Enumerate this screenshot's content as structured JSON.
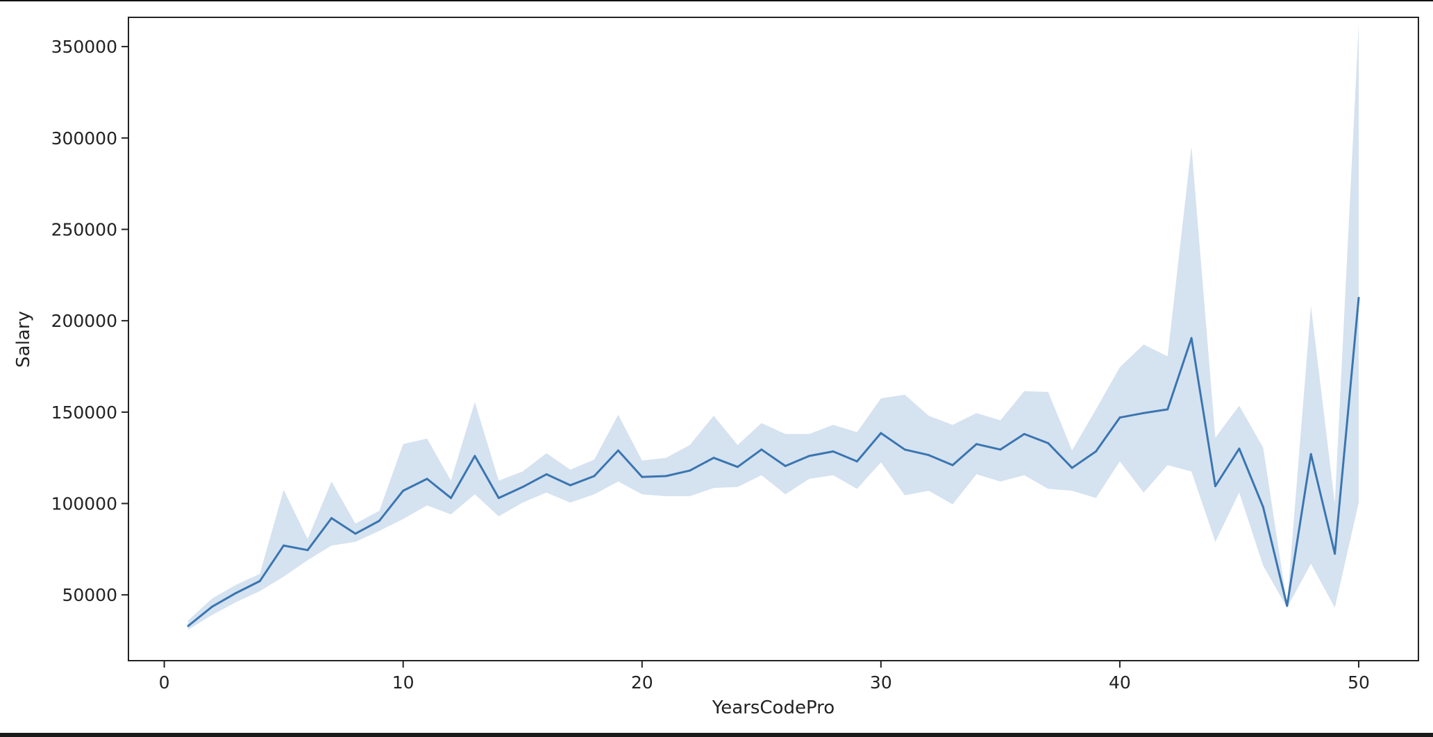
{
  "chart_data": {
    "type": "line",
    "title": "",
    "xlabel": "YearsCodePro",
    "ylabel": "Salary",
    "xlim": [
      -1.5,
      52.5
    ],
    "ylim": [
      14000,
      366000
    ],
    "xticks": [
      0,
      10,
      20,
      30,
      40,
      50
    ],
    "yticks": [
      50000,
      100000,
      150000,
      200000,
      250000,
      300000,
      350000
    ],
    "xtick_labels": [
      "0",
      "10",
      "20",
      "30",
      "40",
      "50"
    ],
    "ytick_labels": [
      "50000",
      "100000",
      "150000",
      "200000",
      "250000",
      "300000",
      "350000"
    ],
    "grid": false,
    "line_color": "#3a75b0",
    "band_color": "#c3d5ea",
    "series": [
      {
        "x": [
          1,
          2,
          3,
          4,
          5,
          6,
          7,
          8,
          9,
          10,
          11,
          12,
          13,
          14,
          15,
          16,
          17,
          18,
          19,
          20,
          21,
          22,
          23,
          24,
          25,
          26,
          27,
          28,
          29,
          30,
          31,
          32,
          33,
          34,
          35,
          36,
          37,
          38,
          39,
          40,
          41,
          42,
          43,
          44,
          45,
          46,
          47,
          48,
          49,
          50
        ],
        "y": [
          33000,
          43500,
          51000,
          57500,
          77000,
          74500,
          92000,
          83500,
          90500,
          107000,
          113500,
          103000,
          126000,
          103000,
          109000,
          116000,
          110000,
          115000,
          129000,
          114500,
          115000,
          118000,
          125000,
          120000,
          129500,
          120500,
          126000,
          128500,
          123000,
          138500,
          129500,
          126500,
          121000,
          132500,
          129500,
          138000,
          133000,
          119500,
          128500,
          147000,
          149500,
          151500,
          190500,
          109500,
          130000,
          98000,
          44000,
          127000,
          72500,
          212500
        ],
        "ci_low": [
          31000,
          39000,
          46000,
          52000,
          60000,
          69000,
          77000,
          79000,
          85000,
          91500,
          99000,
          94000,
          105000,
          93000,
          100500,
          106000,
          100500,
          105000,
          112000,
          105000,
          104000,
          104000,
          108500,
          109000,
          115500,
          105000,
          113500,
          115500,
          108000,
          122500,
          104500,
          107000,
          99500,
          116000,
          112000,
          115500,
          108000,
          107000,
          103000,
          123000,
          106000,
          121000,
          117500,
          79000,
          106000,
          66000,
          43000,
          67000,
          43000,
          100500
        ],
        "ci_high": [
          36000,
          48000,
          55500,
          61500,
          107500,
          80500,
          112000,
          89000,
          96000,
          132500,
          135500,
          112500,
          155500,
          112500,
          117500,
          127500,
          118500,
          124000,
          148500,
          123500,
          125000,
          132000,
          148000,
          132000,
          144000,
          138000,
          138000,
          143000,
          139000,
          157500,
          159500,
          148000,
          143000,
          149500,
          145500,
          161500,
          161000,
          129000,
          151500,
          174500,
          187000,
          180500,
          295500,
          136000,
          153500,
          130500,
          45000,
          208000,
          100000,
          362000
        ]
      }
    ]
  }
}
